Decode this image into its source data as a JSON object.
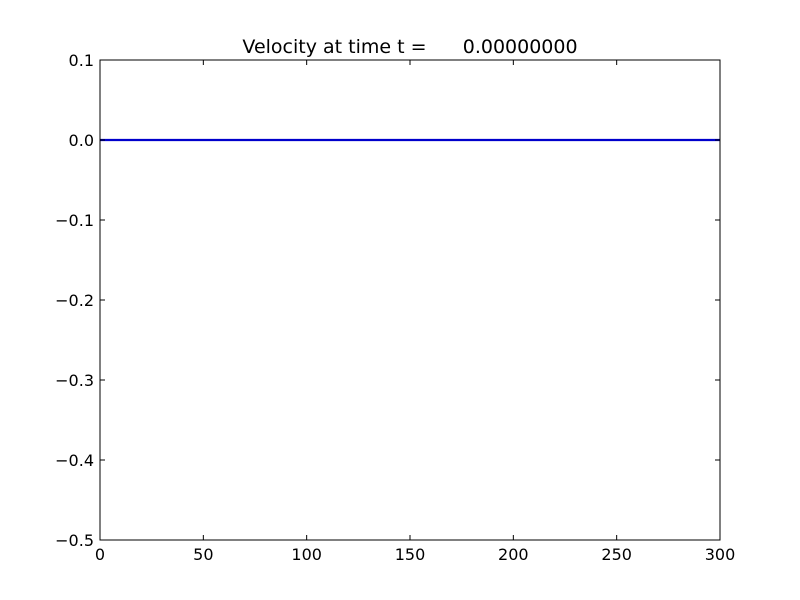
{
  "chart_data": {
    "type": "line",
    "title": "Velocity at time t =      0.00000000",
    "xlabel": "",
    "ylabel": "",
    "xlim": [
      0,
      300
    ],
    "ylim": [
      -0.5,
      0.1
    ],
    "x_ticks": [
      "0",
      "50",
      "100",
      "150",
      "200",
      "250",
      "300"
    ],
    "y_ticks": [
      "0.1",
      "0.0",
      "−0.1",
      "−0.2",
      "−0.3",
      "−0.4",
      "−0.5"
    ],
    "grid": false,
    "series": [
      {
        "color": "#0000cc",
        "x": [
          0,
          50,
          100,
          150,
          200,
          250,
          300
        ],
        "y": [
          0,
          0,
          0,
          0,
          0,
          0,
          0
        ]
      }
    ]
  }
}
